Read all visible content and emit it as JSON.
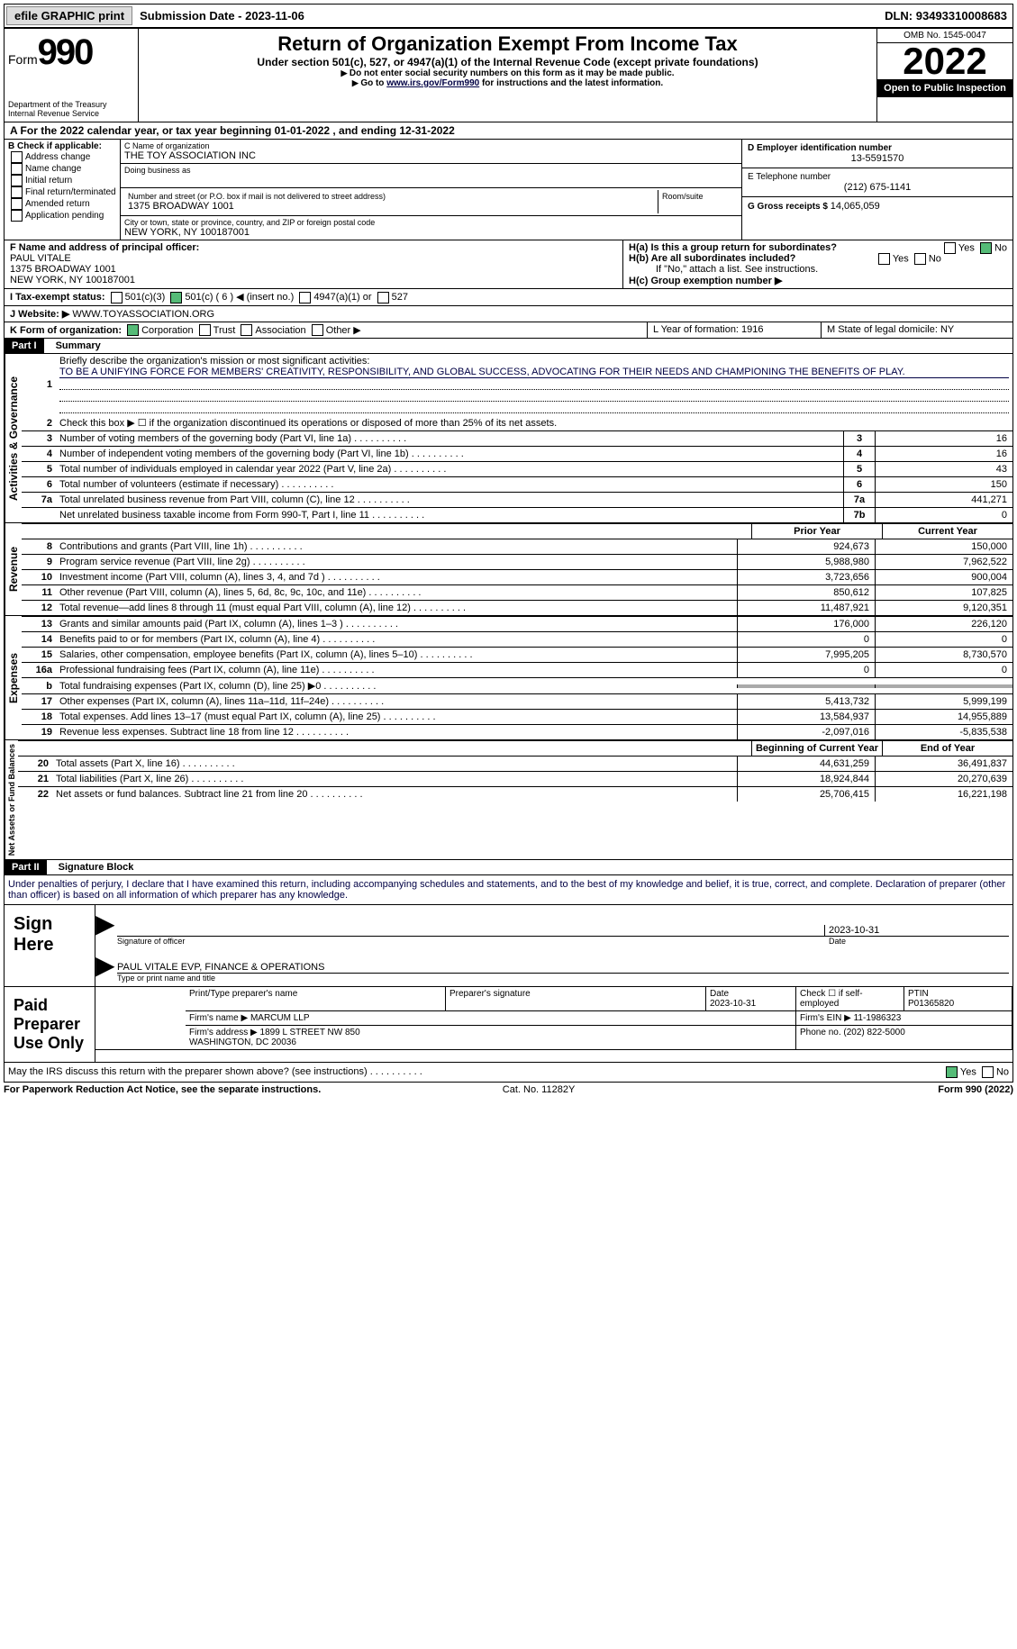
{
  "topbar": {
    "efile": "efile GRAPHIC print",
    "submission_label": "Submission Date - ",
    "submission_date": "2023-11-06",
    "dln_label": "DLN: ",
    "dln": "93493310008683"
  },
  "header": {
    "form_word": "Form",
    "form_num": "990",
    "dept": "Department of the Treasury\nInternal Revenue Service",
    "title": "Return of Organization Exempt From Income Tax",
    "subtitle": "Under section 501(c), 527, or 4947(a)(1) of the Internal Revenue Code (except private foundations)",
    "note1": "Do not enter social security numbers on this form as it may be made public.",
    "note2_a": "Go to ",
    "note2_link": "www.irs.gov/Form990",
    "note2_b": " for instructions and the latest information.",
    "omb": "OMB No. 1545-0047",
    "year": "2022",
    "open": "Open to Public Inspection"
  },
  "row_a": {
    "text": "A  For the 2022 calendar year, or tax year beginning 01-01-2022     , and ending 12-31-2022"
  },
  "section_b": {
    "b_label": "B Check if applicable:",
    "checks": [
      "Address change",
      "Name change",
      "Initial return",
      "Final return/terminated",
      "Amended return",
      "Application pending"
    ],
    "c_name_label": "C Name of organization",
    "c_name": "THE TOY ASSOCIATION INC",
    "dba_label": "Doing business as",
    "street_label": "Number and street (or P.O. box if mail is not delivered to street address)",
    "street": "1375 BROADWAY 1001",
    "room_label": "Room/suite",
    "city_label": "City or town, state or province, country, and ZIP or foreign postal code",
    "city": "NEW YORK, NY  100187001",
    "d_label": "D Employer identification number",
    "d_val": "13-5591570",
    "e_label": "E Telephone number",
    "e_val": "(212) 675-1141",
    "g_label": "G Gross receipts $ ",
    "g_val": "14,065,059"
  },
  "row_f": {
    "f_label": "F Name and address of principal officer:",
    "f_name": "PAUL VITALE",
    "f_addr1": "1375 BROADWAY 1001",
    "f_addr2": "NEW YORK, NY  100187001",
    "ha": "H(a)  Is this a group return for subordinates?",
    "hb": "H(b)  Are all subordinates included?",
    "hb_note": "If \"No,\" attach a list. See instructions.",
    "hc": "H(c)  Group exemption number ▶",
    "yes": "Yes",
    "no": "No"
  },
  "row_i": {
    "label": "I    Tax-exempt status:",
    "c3": "501(c)(3)",
    "c": "501(c) ( 6 ) ◀ (insert no.)",
    "a1": "4947(a)(1) or",
    "s527": "527"
  },
  "row_j": {
    "label": "J   Website: ▶",
    "val": "WWW.TOYASSOCIATION.ORG"
  },
  "row_k": {
    "label": "K Form of organization:",
    "corp": "Corporation",
    "trust": "Trust",
    "assoc": "Association",
    "other": "Other ▶",
    "l": "L Year of formation: 1916",
    "m": "M State of legal domicile: NY"
  },
  "part1": {
    "header": "Part I",
    "title": "Summary",
    "l1_label": "Briefly describe the organization's mission or most significant activities:",
    "l1_text": "TO BE A UNIFYING FORCE FOR MEMBERS' CREATIVITY, RESPONSIBILITY, AND GLOBAL SUCCESS, ADVOCATING FOR THEIR NEEDS AND CHAMPIONING THE BENEFITS OF PLAY.",
    "l2": "Check this box ▶ ☐  if the organization discontinued its operations or disposed of more than 25% of its net assets.",
    "vert1": "Activities & Governance",
    "vert2": "Revenue",
    "vert3": "Expenses",
    "vert4": "Net Assets or Fund Balances",
    "prior": "Prior Year",
    "current": "Current Year",
    "begin": "Beginning of Current Year",
    "end": "End of Year",
    "lines_gov": [
      {
        "n": "3",
        "d": "Number of voting members of the governing body (Part VI, line 1a)",
        "box": "3",
        "v": "16"
      },
      {
        "n": "4",
        "d": "Number of independent voting members of the governing body (Part VI, line 1b)",
        "box": "4",
        "v": "16"
      },
      {
        "n": "5",
        "d": "Total number of individuals employed in calendar year 2022 (Part V, line 2a)",
        "box": "5",
        "v": "43"
      },
      {
        "n": "6",
        "d": "Total number of volunteers (estimate if necessary)",
        "box": "6",
        "v": "150"
      },
      {
        "n": "7a",
        "d": "Total unrelated business revenue from Part VIII, column (C), line 12",
        "box": "7a",
        "v": "441,271"
      },
      {
        "n": "",
        "d": "Net unrelated business taxable income from Form 990-T, Part I, line 11",
        "box": "7b",
        "v": "0"
      }
    ],
    "lines_rev": [
      {
        "n": "8",
        "d": "Contributions and grants (Part VIII, line 1h)",
        "p": "924,673",
        "c": "150,000"
      },
      {
        "n": "9",
        "d": "Program service revenue (Part VIII, line 2g)",
        "p": "5,988,980",
        "c": "7,962,522"
      },
      {
        "n": "10",
        "d": "Investment income (Part VIII, column (A), lines 3, 4, and 7d )",
        "p": "3,723,656",
        "c": "900,004"
      },
      {
        "n": "11",
        "d": "Other revenue (Part VIII, column (A), lines 5, 6d, 8c, 9c, 10c, and 11e)",
        "p": "850,612",
        "c": "107,825"
      },
      {
        "n": "12",
        "d": "Total revenue—add lines 8 through 11 (must equal Part VIII, column (A), line 12)",
        "p": "11,487,921",
        "c": "9,120,351"
      }
    ],
    "lines_exp": [
      {
        "n": "13",
        "d": "Grants and similar amounts paid (Part IX, column (A), lines 1–3 )",
        "p": "176,000",
        "c": "226,120"
      },
      {
        "n": "14",
        "d": "Benefits paid to or for members (Part IX, column (A), line 4)",
        "p": "0",
        "c": "0"
      },
      {
        "n": "15",
        "d": "Salaries, other compensation, employee benefits (Part IX, column (A), lines 5–10)",
        "p": "7,995,205",
        "c": "8,730,570"
      },
      {
        "n": "16a",
        "d": "Professional fundraising fees (Part IX, column (A), line 11e)",
        "p": "0",
        "c": "0"
      },
      {
        "n": "b",
        "d": "Total fundraising expenses (Part IX, column (D), line 25) ▶0",
        "p": "",
        "c": "",
        "shaded": true
      },
      {
        "n": "17",
        "d": "Other expenses (Part IX, column (A), lines 11a–11d, 11f–24e)",
        "p": "5,413,732",
        "c": "5,999,199"
      },
      {
        "n": "18",
        "d": "Total expenses. Add lines 13–17 (must equal Part IX, column (A), line 25)",
        "p": "13,584,937",
        "c": "14,955,889"
      },
      {
        "n": "19",
        "d": "Revenue less expenses. Subtract line 18 from line 12",
        "p": "-2,097,016",
        "c": "-5,835,538"
      }
    ],
    "lines_net": [
      {
        "n": "20",
        "d": "Total assets (Part X, line 16)",
        "p": "44,631,259",
        "c": "36,491,837"
      },
      {
        "n": "21",
        "d": "Total liabilities (Part X, line 26)",
        "p": "18,924,844",
        "c": "20,270,639"
      },
      {
        "n": "22",
        "d": "Net assets or fund balances. Subtract line 21 from line 20",
        "p": "25,706,415",
        "c": "16,221,198"
      }
    ]
  },
  "part2": {
    "header": "Part II",
    "title": "Signature Block",
    "penalty": "Under penalties of perjury, I declare that I have examined this return, including accompanying schedules and statements, and to the best of my knowledge and belief, it is true, correct, and complete. Declaration of preparer (other than officer) is based on all information of which preparer has any knowledge.",
    "sign_here": "Sign Here",
    "sig_officer": "Signature of officer",
    "sig_date": "2023-10-31",
    "date_label": "Date",
    "sig_name": "PAUL VITALE  EVP, FINANCE & OPERATIONS",
    "sig_name_label": "Type or print name and title",
    "paid": "Paid Preparer Use Only",
    "prep_name_label": "Print/Type preparer's name",
    "prep_sig_label": "Preparer's signature",
    "prep_date_label": "Date",
    "prep_date": "2023-10-31",
    "check_self": "Check ☐ if self-employed",
    "ptin_label": "PTIN",
    "ptin": "P01365820",
    "firm_name_label": "Firm's name    ▶",
    "firm_name": "MARCUM LLP",
    "firm_ein_label": "Firm's EIN ▶",
    "firm_ein": "11-1986323",
    "firm_addr_label": "Firm's address ▶",
    "firm_addr": "1899 L STREET NW 850\nWASHINGTON, DC  20036",
    "phone_label": "Phone no.",
    "phone": "(202) 822-5000",
    "discuss": "May the IRS discuss this return with the preparer shown above? (see instructions)"
  },
  "footer": {
    "left": "For Paperwork Reduction Act Notice, see the separate instructions.",
    "mid": "Cat. No. 11282Y",
    "right": "Form 990 (2022)"
  }
}
